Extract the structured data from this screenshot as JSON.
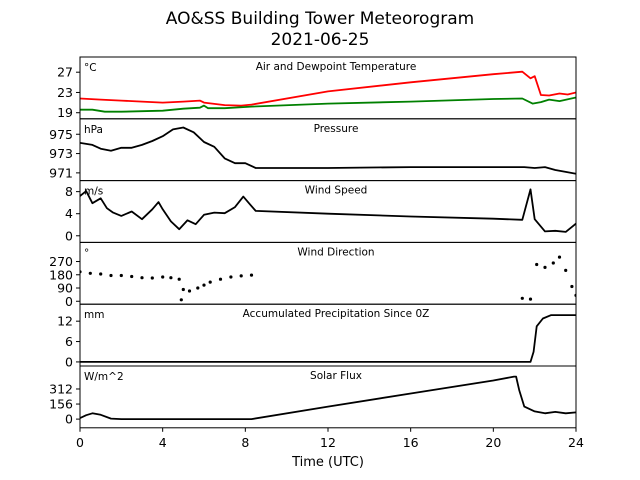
{
  "title": "AO&SS Building Tower Meteorogram",
  "subtitle": "2021-06-25",
  "xlabel": "Time (UTC)",
  "chart_data": {
    "type": "line",
    "x_ticks": [
      "0",
      "4",
      "8",
      "12",
      "16",
      "20",
      "24"
    ],
    "xlim": [
      0,
      24
    ],
    "panels": [
      {
        "name": "temp",
        "title": "Air and Dewpoint Temperature",
        "unit": "°C",
        "ylim": [
          17.8,
          30
        ],
        "yticks": [
          19,
          23,
          27
        ],
        "series": [
          {
            "color": "#ff0000",
            "style": "line",
            "points": [
              [
                0,
                21.8
              ],
              [
                1,
                21.6
              ],
              [
                2,
                21.4
              ],
              [
                3,
                21.2
              ],
              [
                4,
                21.0
              ],
              [
                5,
                21.2
              ],
              [
                5.8,
                21.4
              ],
              [
                6,
                21.0
              ],
              [
                7,
                20.5
              ],
              [
                7.8,
                20.4
              ],
              [
                8.3,
                20.6
              ],
              [
                12,
                23.2
              ],
              [
                16,
                25.0
              ],
              [
                20,
                26.6
              ],
              [
                21.4,
                27.1
              ],
              [
                21.8,
                25.8
              ],
              [
                22,
                26.2
              ],
              [
                22.3,
                22.5
              ],
              [
                22.7,
                22.4
              ],
              [
                23.2,
                22.8
              ],
              [
                23.6,
                22.6
              ],
              [
                24,
                23.0
              ]
            ]
          },
          {
            "color": "#008000",
            "style": "line",
            "points": [
              [
                0,
                19.6
              ],
              [
                0.6,
                19.6
              ],
              [
                1.2,
                19.2
              ],
              [
                2,
                19.2
              ],
              [
                3,
                19.3
              ],
              [
                4,
                19.4
              ],
              [
                4.5,
                19.6
              ],
              [
                5,
                19.8
              ],
              [
                5.8,
                20.0
              ],
              [
                6,
                20.4
              ],
              [
                6.2,
                19.9
              ],
              [
                7,
                19.9
              ],
              [
                8.3,
                20.2
              ],
              [
                12,
                20.8
              ],
              [
                16,
                21.2
              ],
              [
                20,
                21.7
              ],
              [
                21.4,
                21.8
              ],
              [
                21.9,
                20.8
              ],
              [
                22.3,
                21.1
              ],
              [
                22.7,
                21.6
              ],
              [
                23.2,
                21.3
              ],
              [
                24,
                22.0
              ]
            ]
          }
        ]
      },
      {
        "name": "pressure",
        "title": "Pressure",
        "unit": "hPa",
        "ylim": [
          970.2,
          976.6
        ],
        "yticks": [
          971,
          973,
          975
        ],
        "series": [
          {
            "color": "#000000",
            "style": "line",
            "points": [
              [
                0,
                974.1
              ],
              [
                0.6,
                973.9
              ],
              [
                1,
                973.5
              ],
              [
                1.5,
                973.3
              ],
              [
                2,
                973.6
              ],
              [
                2.5,
                973.6
              ],
              [
                3,
                973.9
              ],
              [
                3.5,
                974.3
              ],
              [
                4,
                974.8
              ],
              [
                4.5,
                975.5
              ],
              [
                5,
                975.7
              ],
              [
                5.5,
                975.2
              ],
              [
                6,
                974.2
              ],
              [
                6.5,
                973.7
              ],
              [
                7,
                972.5
              ],
              [
                7.5,
                972.0
              ],
              [
                8,
                972.0
              ],
              [
                8.5,
                971.5
              ],
              [
                12,
                971.5
              ],
              [
                16,
                971.6
              ],
              [
                20,
                971.6
              ],
              [
                21.5,
                971.6
              ],
              [
                22,
                971.5
              ],
              [
                22.5,
                971.6
              ],
              [
                23,
                971.3
              ],
              [
                23.5,
                971.1
              ],
              [
                24,
                970.9
              ]
            ]
          }
        ]
      },
      {
        "name": "wind_speed",
        "title": "Wind Speed",
        "unit": "m/s",
        "ylim": [
          -1.2,
          10
        ],
        "yticks": [
          0,
          4,
          8
        ],
        "series": [
          {
            "color": "#000000",
            "style": "line",
            "points": [
              [
                0,
                7.2
              ],
              [
                0.3,
                8.1
              ],
              [
                0.6,
                5.9
              ],
              [
                1,
                6.8
              ],
              [
                1.3,
                5.0
              ],
              [
                1.6,
                4.2
              ],
              [
                2,
                3.6
              ],
              [
                2.5,
                4.4
              ],
              [
                3,
                3.0
              ],
              [
                3.5,
                4.8
              ],
              [
                3.8,
                6.1
              ],
              [
                4,
                4.8
              ],
              [
                4.4,
                2.6
              ],
              [
                4.8,
                1.2
              ],
              [
                5.2,
                2.8
              ],
              [
                5.6,
                2.1
              ],
              [
                6,
                3.8
              ],
              [
                6.5,
                4.2
              ],
              [
                7,
                4.1
              ],
              [
                7.5,
                5.2
              ],
              [
                7.9,
                7.1
              ],
              [
                8.2,
                5.8
              ],
              [
                8.5,
                4.5
              ],
              [
                12,
                4.0
              ],
              [
                16,
                3.5
              ],
              [
                20,
                3.1
              ],
              [
                21.4,
                2.9
              ],
              [
                21.8,
                8.4
              ],
              [
                22,
                3.0
              ],
              [
                22.5,
                0.8
              ],
              [
                23,
                0.9
              ],
              [
                23.5,
                0.7
              ],
              [
                23.8,
                1.6
              ],
              [
                24,
                2.2
              ]
            ]
          }
        ]
      },
      {
        "name": "wind_dir",
        "title": "Wind Direction",
        "unit": "°",
        "ylim": [
          -20,
          400
        ],
        "yticks": [
          0,
          90,
          180,
          270
        ],
        "series": [
          {
            "color": "#000000",
            "style": "scatter",
            "points": [
              [
                0,
                200
              ],
              [
                0.5,
                190
              ],
              [
                1,
                185
              ],
              [
                1.5,
                175
              ],
              [
                2,
                175
              ],
              [
                2.5,
                168
              ],
              [
                3,
                160
              ],
              [
                3.5,
                158
              ],
              [
                4,
                165
              ],
              [
                4.4,
                160
              ],
              [
                4.8,
                150
              ],
              [
                4.9,
                10
              ],
              [
                5.0,
                80
              ],
              [
                5.3,
                70
              ],
              [
                5.7,
                90
              ],
              [
                6.0,
                110
              ],
              [
                6.3,
                130
              ],
              [
                6.8,
                150
              ],
              [
                7.3,
                165
              ],
              [
                7.8,
                172
              ],
              [
                8.3,
                178
              ],
              [
                21.4,
                20
              ],
              [
                21.8,
                15
              ],
              [
                22.1,
                250
              ],
              [
                22.5,
                230
              ],
              [
                22.9,
                260
              ],
              [
                23.2,
                300
              ],
              [
                23.5,
                210
              ],
              [
                23.8,
                100
              ],
              [
                24,
                40
              ]
            ]
          }
        ]
      },
      {
        "name": "precip",
        "title": "Accumulated Precipitation Since 0Z",
        "unit": "mm",
        "ylim": [
          -1.2,
          17
        ],
        "yticks": [
          0,
          6,
          12
        ],
        "series": [
          {
            "color": "#000000",
            "style": "line",
            "points": [
              [
                0,
                0
              ],
              [
                21.8,
                0
              ],
              [
                21.95,
                3
              ],
              [
                22.1,
                10.5
              ],
              [
                22.4,
                12.8
              ],
              [
                22.8,
                13.8
              ],
              [
                24,
                13.8
              ]
            ]
          }
        ]
      },
      {
        "name": "solar",
        "title": "Solar Flux",
        "unit": "W/m^2",
        "ylim": [
          -90,
          550
        ],
        "yticks": [
          0,
          156,
          312
        ],
        "series": [
          {
            "color": "#000000",
            "style": "line",
            "points": [
              [
                0,
                10
              ],
              [
                0.3,
                40
              ],
              [
                0.6,
                60
              ],
              [
                1,
                45
              ],
              [
                1.5,
                5
              ],
              [
                2,
                0
              ],
              [
                8.3,
                0
              ],
              [
                12,
                130
              ],
              [
                16,
                265
              ],
              [
                20,
                400
              ],
              [
                21.0,
                440
              ],
              [
                21.1,
                440
              ],
              [
                21.25,
                300
              ],
              [
                21.5,
                130
              ],
              [
                22,
                80
              ],
              [
                22.5,
                60
              ],
              [
                23,
                75
              ],
              [
                23.5,
                60
              ],
              [
                24,
                70
              ]
            ]
          }
        ]
      }
    ]
  }
}
